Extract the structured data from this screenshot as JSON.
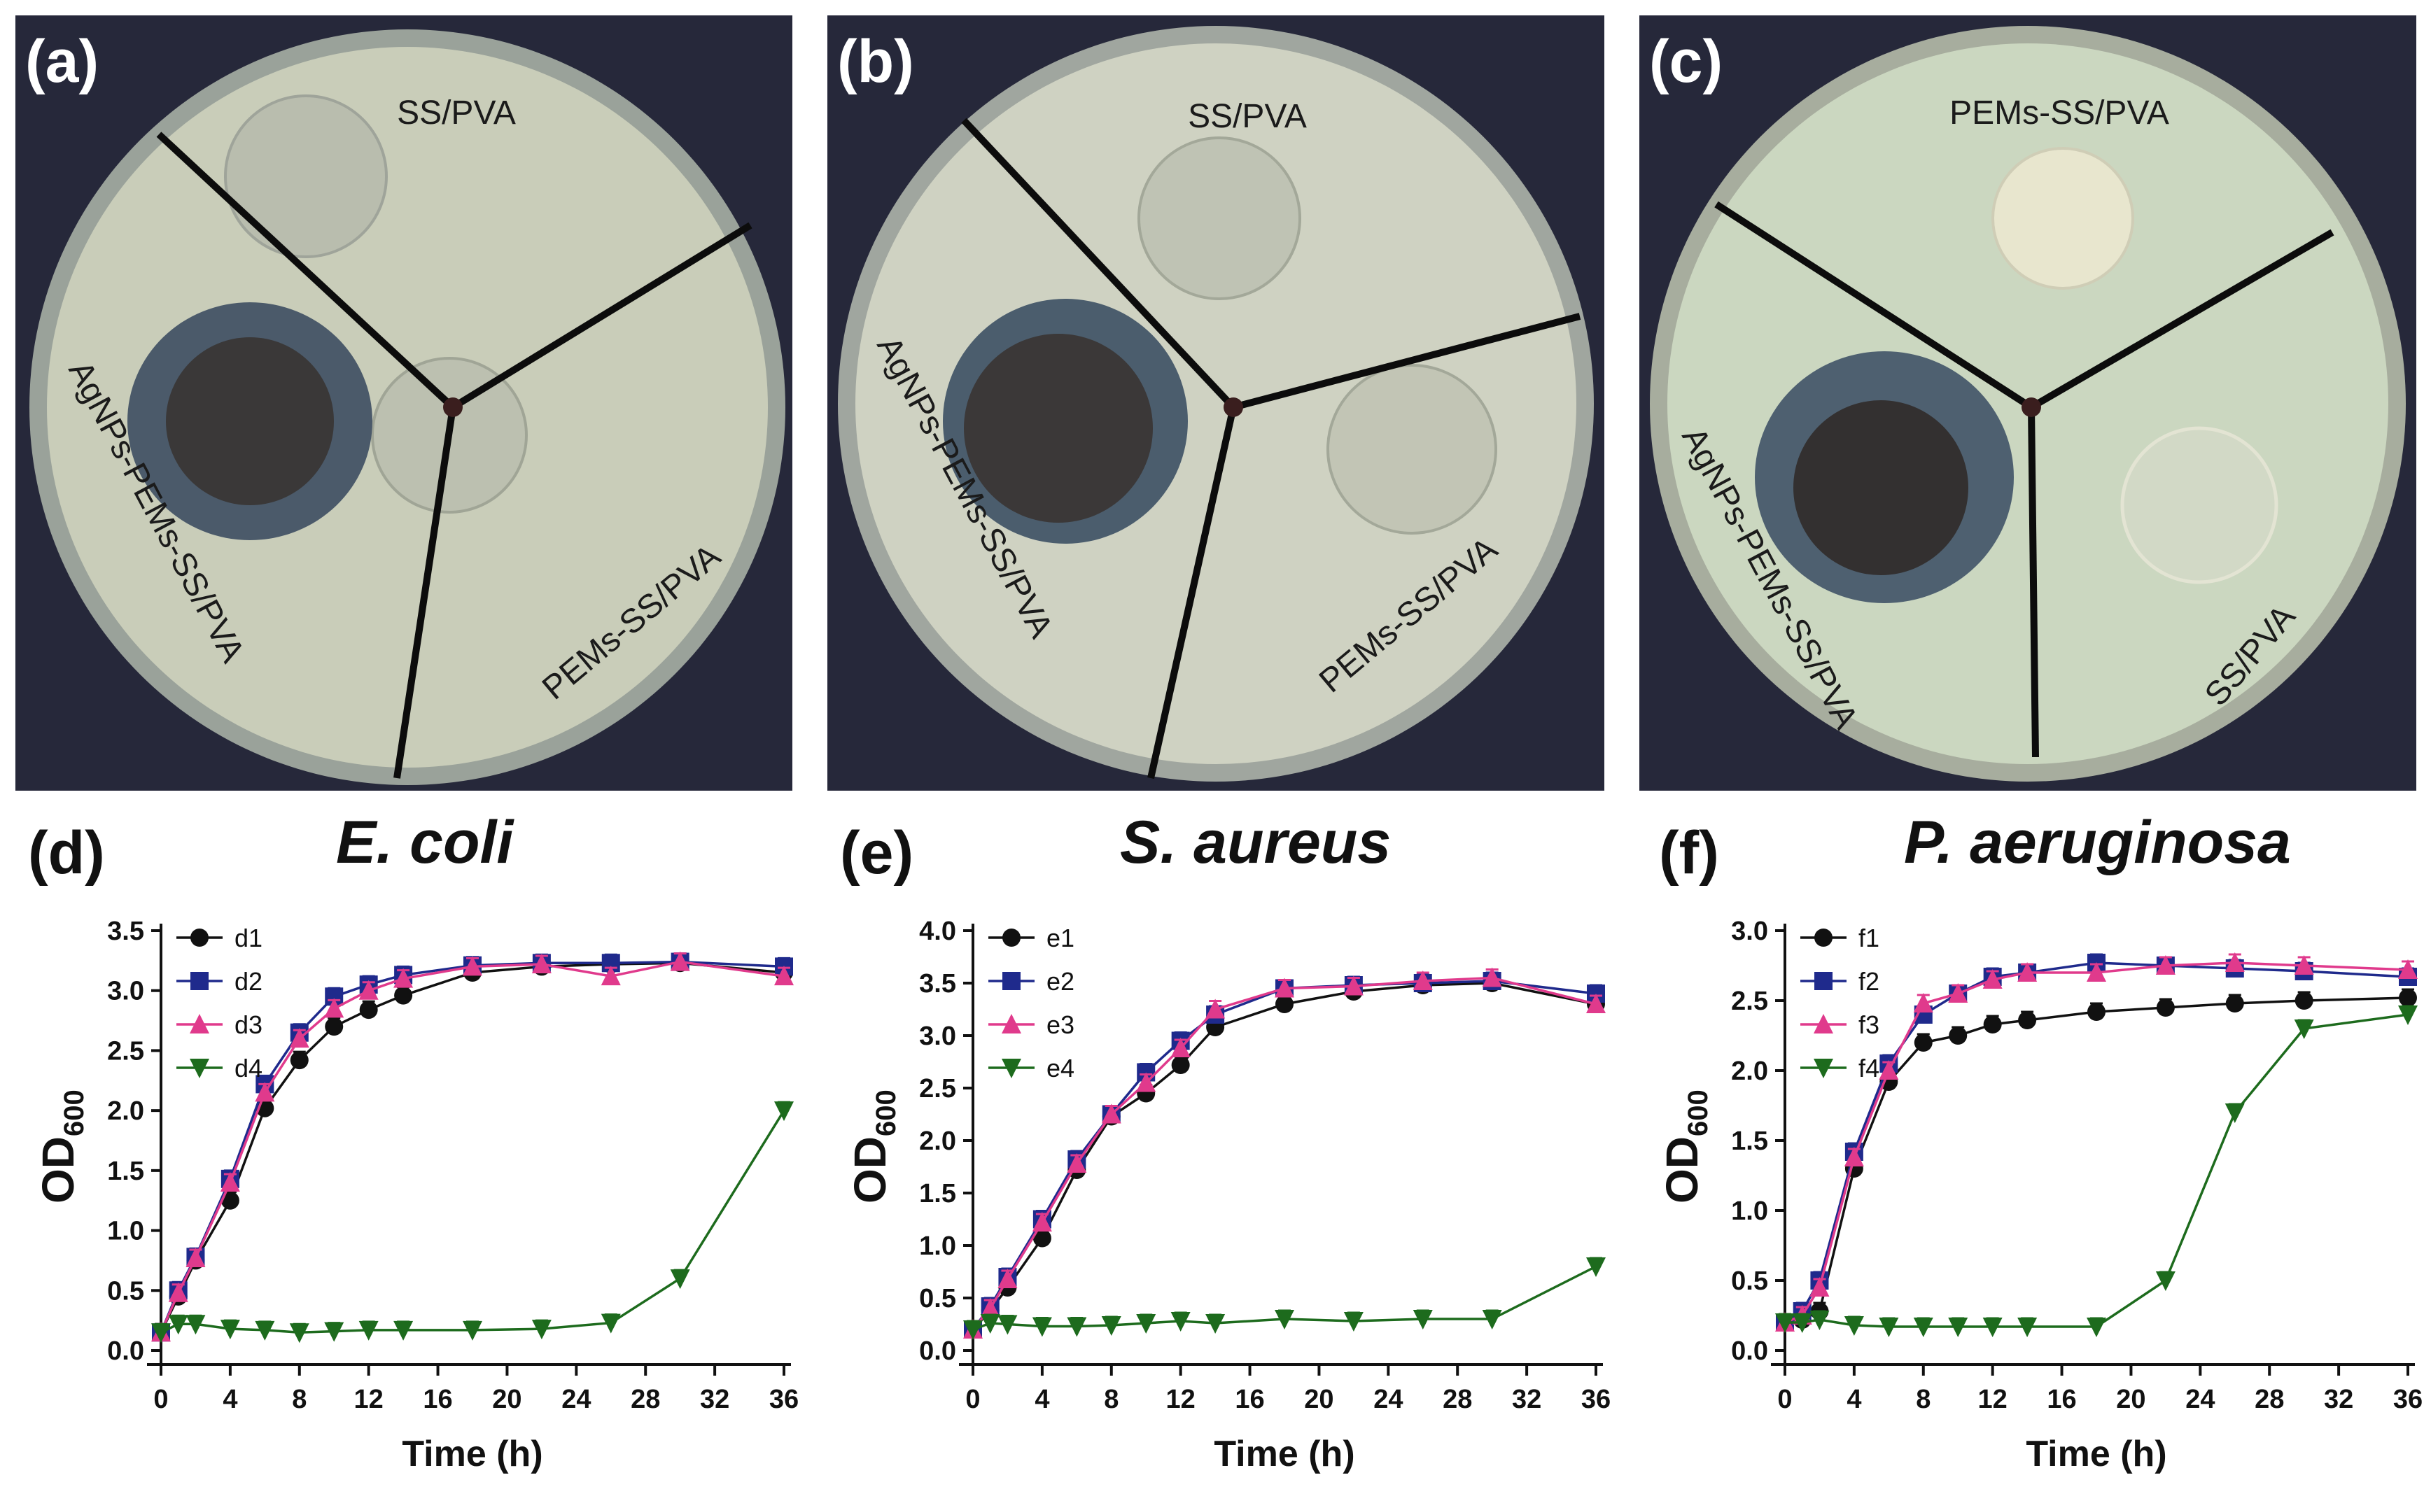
{
  "figure": {
    "panels_photo": [
      {
        "label": "(a)",
        "texts": [
          "SS/PVA",
          "AgNPs-PEMs-SS/PVA",
          "PEMs-SS/PVA"
        ],
        "plate_color": "#c9cdb9",
        "zone_color": "#4b5a6a"
      },
      {
        "label": "(b)",
        "texts": [
          "SS/PVA",
          "AgNPs-PEMs-SS/PVA",
          "PEMs-SS/PVA"
        ],
        "plate_color": "#cfd2c2",
        "zone_color": "#4b5d6d"
      },
      {
        "label": "(c)",
        "texts": [
          "PEMs-SS/PVA",
          "AgNPs-PEMs-SS/PVA",
          "SS/PVA"
        ],
        "plate_color": "#cbd7c0",
        "zone_color": "#4e6070"
      }
    ]
  },
  "chart_data": [
    {
      "type": "line",
      "label": "(d)",
      "title": "E. coli",
      "xlabel": "Time (h)",
      "ylabel_main": "OD",
      "ylabel_sub": "600",
      "x": [
        0,
        1,
        2,
        4,
        6,
        8,
        10,
        12,
        14,
        18,
        22,
        26,
        30,
        36
      ],
      "xticks": [
        "0",
        "4",
        "8",
        "12",
        "16",
        "20",
        "24",
        "28",
        "32",
        "36"
      ],
      "xlim": [
        0,
        36
      ],
      "ylim": [
        0,
        3.5
      ],
      "yticks": [
        "0.0",
        "0.5",
        "1.0",
        "1.5",
        "2.0",
        "2.5",
        "3.0",
        "3.5"
      ],
      "series": [
        {
          "name": "d1",
          "color": "#111111",
          "marker": "circle",
          "values": [
            0.15,
            0.45,
            0.75,
            1.25,
            2.02,
            2.42,
            2.7,
            2.84,
            2.96,
            3.15,
            3.2,
            3.22,
            3.23,
            3.15
          ]
        },
        {
          "name": "d2",
          "color": "#1f2a8c",
          "marker": "square",
          "values": [
            0.15,
            0.5,
            0.78,
            1.43,
            2.22,
            2.65,
            2.95,
            3.05,
            3.13,
            3.21,
            3.23,
            3.23,
            3.24,
            3.2
          ]
        },
        {
          "name": "d3",
          "color": "#e03a8c",
          "marker": "triangle-up",
          "values": [
            0.15,
            0.48,
            0.77,
            1.4,
            2.15,
            2.6,
            2.85,
            3.0,
            3.1,
            3.2,
            3.22,
            3.12,
            3.24,
            3.12
          ]
        },
        {
          "name": "d4",
          "color": "#1d6b1d",
          "marker": "triangle-down",
          "values": [
            0.15,
            0.22,
            0.22,
            0.18,
            0.17,
            0.15,
            0.16,
            0.17,
            0.17,
            0.17,
            0.18,
            0.23,
            0.6,
            2.0
          ]
        }
      ]
    },
    {
      "type": "line",
      "label": "(e)",
      "title": "S. aureus",
      "xlabel": "Time (h)",
      "ylabel_main": "OD",
      "ylabel_sub": "600",
      "x": [
        0,
        1,
        2,
        4,
        6,
        8,
        10,
        12,
        14,
        18,
        22,
        26,
        30,
        36
      ],
      "xticks": [
        "0",
        "4",
        "8",
        "12",
        "16",
        "20",
        "24",
        "28",
        "32",
        "36"
      ],
      "xlim": [
        0,
        36
      ],
      "ylim": [
        0,
        4.0
      ],
      "yticks": [
        "0.0",
        "0.5",
        "1.0",
        "1.5",
        "2.0",
        "2.5",
        "3.0",
        "3.5",
        "4.0"
      ],
      "series": [
        {
          "name": "e1",
          "color": "#111111",
          "marker": "circle",
          "values": [
            0.2,
            0.38,
            0.6,
            1.07,
            1.72,
            2.23,
            2.45,
            2.72,
            3.08,
            3.3,
            3.42,
            3.48,
            3.5,
            3.3
          ]
        },
        {
          "name": "e2",
          "color": "#1f2a8c",
          "marker": "square",
          "values": [
            0.2,
            0.42,
            0.7,
            1.25,
            1.82,
            2.25,
            2.65,
            2.95,
            3.2,
            3.45,
            3.48,
            3.5,
            3.52,
            3.4
          ]
        },
        {
          "name": "e3",
          "color": "#e03a8c",
          "marker": "triangle-up",
          "values": [
            0.2,
            0.4,
            0.68,
            1.22,
            1.78,
            2.25,
            2.55,
            2.88,
            3.25,
            3.45,
            3.47,
            3.52,
            3.55,
            3.3
          ]
        },
        {
          "name": "e4",
          "color": "#1d6b1d",
          "marker": "triangle-down",
          "values": [
            0.2,
            0.26,
            0.25,
            0.23,
            0.23,
            0.24,
            0.26,
            0.28,
            0.26,
            0.3,
            0.28,
            0.3,
            0.3,
            0.8
          ]
        }
      ]
    },
    {
      "type": "line",
      "label": "(f)",
      "title": "P. aeruginosa",
      "xlabel": "Time (h)",
      "ylabel_main": "OD",
      "ylabel_sub": "600",
      "x": [
        0,
        1,
        2,
        4,
        6,
        8,
        10,
        12,
        14,
        18,
        22,
        26,
        30,
        36
      ],
      "xticks": [
        "0",
        "4",
        "8",
        "12",
        "16",
        "20",
        "24",
        "28",
        "32",
        "36"
      ],
      "xlim": [
        0,
        36
      ],
      "ylim": [
        0,
        3.0
      ],
      "yticks": [
        "0.0",
        "0.5",
        "1.0",
        "1.5",
        "2.0",
        "2.5",
        "3.0"
      ],
      "series": [
        {
          "name": "f1",
          "color": "#111111",
          "marker": "circle",
          "values": [
            0.2,
            0.22,
            0.28,
            1.3,
            1.92,
            2.2,
            2.25,
            2.33,
            2.36,
            2.42,
            2.45,
            2.48,
            2.5,
            2.52
          ]
        },
        {
          "name": "f2",
          "color": "#1f2a8c",
          "marker": "square",
          "values": [
            0.2,
            0.28,
            0.5,
            1.42,
            2.05,
            2.4,
            2.55,
            2.67,
            2.7,
            2.77,
            2.75,
            2.73,
            2.71,
            2.67
          ]
        },
        {
          "name": "f3",
          "color": "#e03a8c",
          "marker": "triangle-up",
          "values": [
            0.2,
            0.25,
            0.45,
            1.38,
            2.0,
            2.48,
            2.55,
            2.65,
            2.7,
            2.7,
            2.75,
            2.77,
            2.75,
            2.72
          ]
        },
        {
          "name": "f4",
          "color": "#1d6b1d",
          "marker": "triangle-down",
          "values": [
            0.2,
            0.2,
            0.22,
            0.18,
            0.17,
            0.17,
            0.17,
            0.17,
            0.17,
            0.17,
            0.5,
            1.7,
            2.3,
            2.4
          ]
        }
      ]
    }
  ]
}
